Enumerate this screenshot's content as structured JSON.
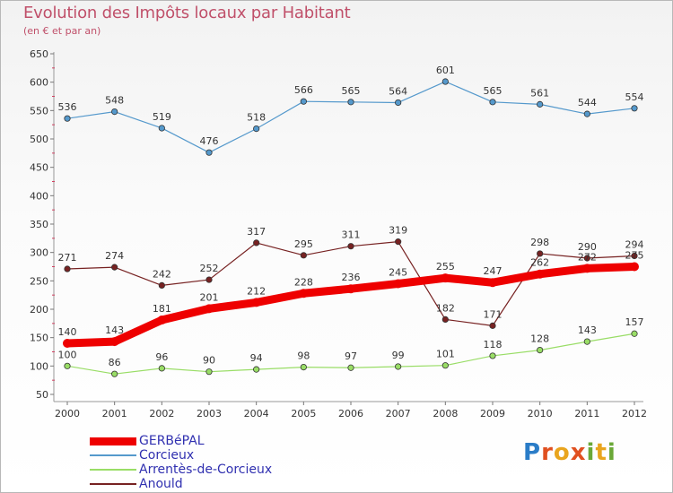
{
  "title": "Evolution des Impôts locaux par Habitant",
  "subtitle": "(en € et par an)",
  "logo_text": "Proxiti",
  "chart_data": {
    "type": "line",
    "x": [
      "2000",
      "2001",
      "2002",
      "2003",
      "2004",
      "2005",
      "2006",
      "2007",
      "2008",
      "2009",
      "2010",
      "2011",
      "2012"
    ],
    "ylim": [
      50,
      650
    ],
    "yticks": [
      50,
      100,
      150,
      200,
      250,
      300,
      350,
      400,
      450,
      500,
      550,
      600,
      650
    ],
    "grid": false,
    "legend_position": "bottom-left",
    "series": [
      {
        "name": "GERBéPAL",
        "color": "#ee0000",
        "values": [
          140,
          143,
          181,
          201,
          212,
          228,
          236,
          245,
          255,
          247,
          262,
          272,
          275
        ]
      },
      {
        "name": "Corcieux",
        "color": "#5599cc",
        "values": [
          536,
          548,
          519,
          476,
          518,
          566,
          565,
          564,
          601,
          565,
          561,
          544,
          554
        ]
      },
      {
        "name": "Arrentès-de-Corcieux",
        "color": "#99dd66",
        "values": [
          100,
          86,
          96,
          90,
          94,
          98,
          97,
          99,
          101,
          118,
          128,
          143,
          157
        ]
      },
      {
        "name": "Anould",
        "color": "#772222",
        "values": [
          271,
          274,
          242,
          252,
          317,
          295,
          311,
          319,
          182,
          171,
          298,
          290,
          294
        ]
      }
    ]
  }
}
